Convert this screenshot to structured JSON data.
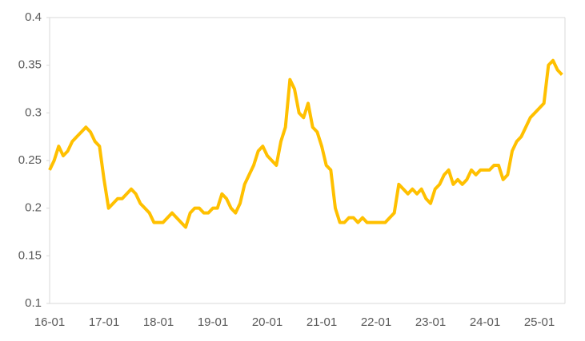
{
  "chart_data": {
    "type": "line",
    "categories": [
      "16-01",
      null,
      null,
      null,
      null,
      null,
      null,
      null,
      null,
      null,
      null,
      null,
      "17-01",
      null,
      null,
      null,
      null,
      null,
      null,
      null,
      null,
      null,
      null,
      null,
      "18-01",
      null,
      null,
      null,
      null,
      null,
      null,
      null,
      null,
      null,
      null,
      null,
      "19-01",
      null,
      null,
      null,
      null,
      null,
      null,
      null,
      null,
      null,
      null,
      null,
      "20-01",
      null,
      null,
      null,
      null,
      null,
      null,
      null,
      null,
      null,
      null,
      null,
      "21-01",
      null,
      null,
      null,
      null,
      null,
      null,
      null,
      null,
      null,
      null,
      null,
      "22-01",
      null,
      null,
      null,
      null,
      null,
      null,
      null,
      null,
      null,
      null,
      null,
      "23-01",
      null,
      null,
      null,
      null,
      null,
      null,
      null,
      null,
      null,
      null,
      null,
      "24-01",
      null,
      null,
      null,
      null,
      null,
      null,
      null,
      null,
      null,
      null,
      null,
      "25-01",
      null,
      null,
      null,
      null,
      null
    ],
    "values": [
      0.24,
      0.25,
      0.265,
      0.255,
      0.26,
      0.27,
      0.275,
      0.28,
      0.285,
      0.28,
      0.27,
      0.265,
      0.23,
      0.2,
      0.205,
      0.21,
      0.21,
      0.215,
      0.22,
      0.215,
      0.205,
      0.2,
      0.195,
      0.185,
      0.185,
      0.185,
      0.19,
      0.195,
      0.19,
      0.185,
      0.18,
      0.195,
      0.2,
      0.2,
      0.195,
      0.195,
      0.2,
      0.2,
      0.215,
      0.21,
      0.2,
      0.195,
      0.205,
      0.225,
      0.235,
      0.245,
      0.26,
      0.265,
      0.255,
      0.25,
      0.245,
      0.27,
      0.285,
      0.335,
      0.325,
      0.3,
      0.295,
      0.31,
      0.285,
      0.28,
      0.265,
      0.245,
      0.24,
      0.2,
      0.185,
      0.185,
      0.19,
      0.19,
      0.185,
      0.19,
      0.185,
      0.185,
      0.185,
      0.185,
      0.185,
      0.19,
      0.195,
      0.225,
      0.22,
      0.215,
      0.22,
      0.215,
      0.22,
      0.21,
      0.205,
      0.22,
      0.225,
      0.235,
      0.24,
      0.225,
      0.23,
      0.225,
      0.23,
      0.24,
      0.235,
      0.24,
      0.24,
      0.24,
      0.245,
      0.245,
      0.23,
      0.235,
      0.26,
      0.27,
      0.275,
      0.285,
      0.295,
      0.3,
      0.305,
      0.31,
      0.35,
      0.355,
      0.345,
      0.34
    ],
    "color": "#ffc000",
    "ylim": [
      0.1,
      0.4
    ],
    "yticks": [
      0.1,
      0.15,
      0.2,
      0.25,
      0.3,
      0.35,
      0.4
    ],
    "grid": false
  }
}
